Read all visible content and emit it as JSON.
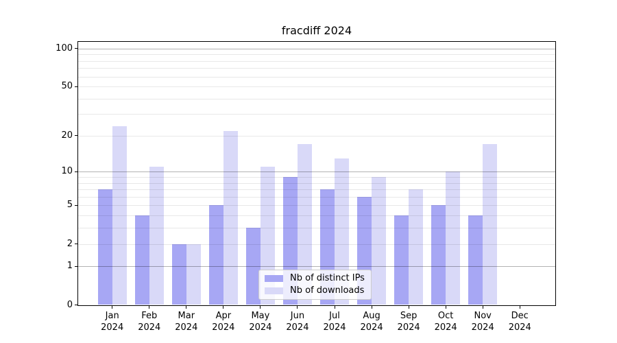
{
  "chart_data": {
    "type": "bar",
    "title": "fracdiff 2024",
    "categories": [
      "Jan",
      "Feb",
      "Mar",
      "Apr",
      "May",
      "Jun",
      "Jul",
      "Aug",
      "Sep",
      "Oct",
      "Nov",
      "Dec"
    ],
    "year_label": "2024",
    "series": [
      {
        "name": "Nb of distinct IPs",
        "color": "#a7a7f4",
        "values": [
          7,
          4,
          2,
          5,
          3,
          9,
          7,
          6,
          4,
          5,
          4,
          0
        ]
      },
      {
        "name": "Nb of downloads",
        "color": "#d9d9f8",
        "values": [
          24,
          11,
          2,
          22,
          11,
          17,
          13,
          9,
          7,
          10,
          17,
          0
        ]
      }
    ],
    "xlabel": "",
    "ylabel": "",
    "yscale": "log10(1+v)",
    "ylim": [
      0,
      113.6
    ],
    "yticks": [
      0,
      1,
      2,
      5,
      10,
      20,
      50,
      100
    ],
    "major_gridlines": [
      1,
      10,
      100
    ],
    "minor_gridlines": [
      2,
      3,
      4,
      5,
      6,
      7,
      8,
      9,
      20,
      30,
      40,
      50,
      60,
      70,
      80,
      90
    ],
    "grid": "on, drawn over bars",
    "legend_position": "lower center"
  }
}
